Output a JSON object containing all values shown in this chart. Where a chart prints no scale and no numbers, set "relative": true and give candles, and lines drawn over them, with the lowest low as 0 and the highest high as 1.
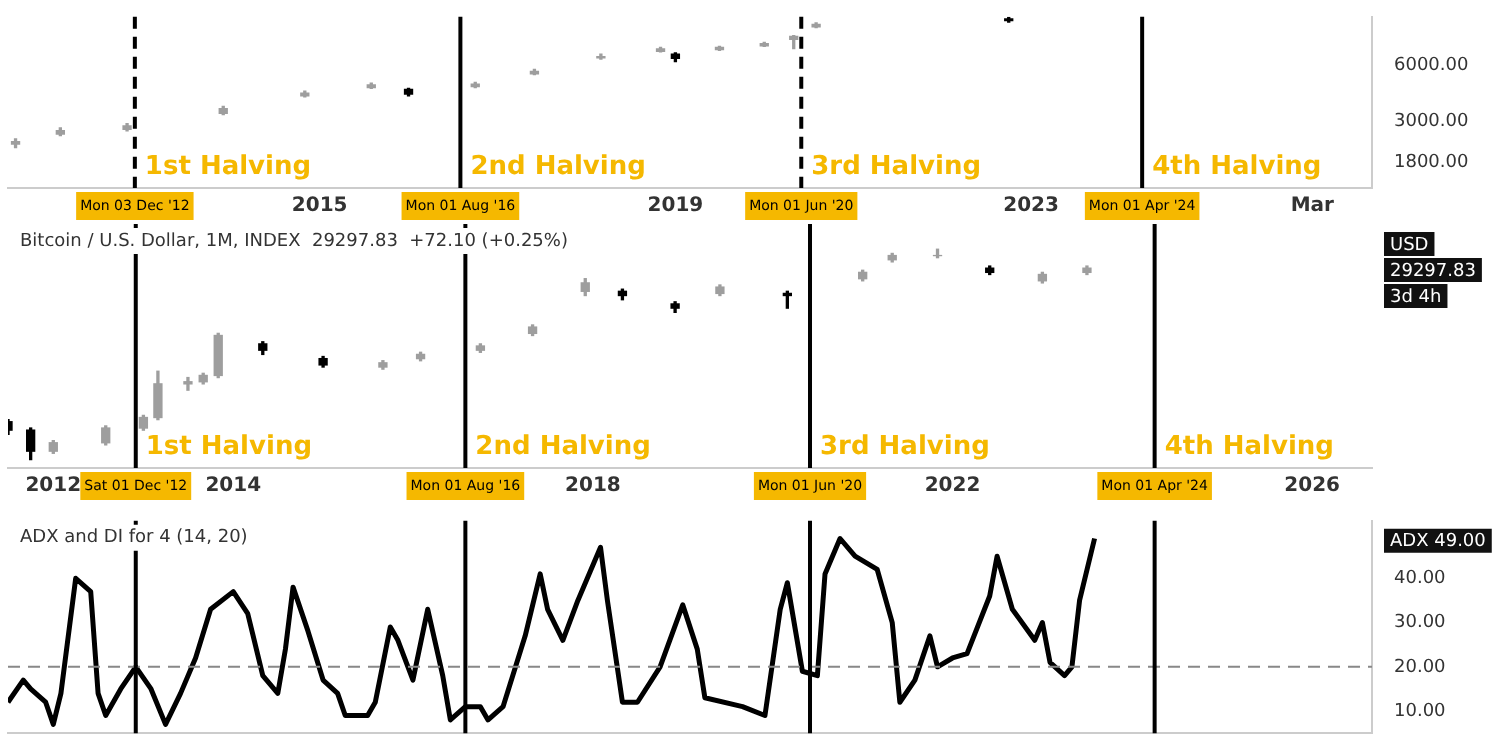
{
  "chart_data": [
    {
      "type": "candlestick",
      "log": true,
      "xlim": [
        "2011-07",
        "2026-11"
      ],
      "ylim": [
        1300,
        11000
      ],
      "xticks": [
        {
          "value": "2015-01",
          "label": "2015"
        },
        {
          "value": "2019-01",
          "label": "2019"
        },
        {
          "value": "2023-01",
          "label": "2023"
        },
        {
          "value": "2026-03",
          "label": "Mar"
        }
      ],
      "yticks": [
        {
          "value": 1800,
          "label": "1800.00"
        },
        {
          "value": 3000,
          "label": "3000.00"
        },
        {
          "value": 6000,
          "label": "6000.00"
        }
      ],
      "x": [
        "2011-08",
        "2012-02",
        "2012-11",
        "2013-12",
        "2014-11",
        "2015-08",
        "2016-01",
        "2016-10",
        "2017-06",
        "2018-03",
        "2018-11",
        "2019-01",
        "2019-07",
        "2020-01",
        "2020-05",
        "2020-08",
        "2022-10"
      ],
      "ohlc": [
        [
          2250,
          2400,
          2150,
          2320
        ],
        [
          2550,
          2750,
          2500,
          2660
        ],
        [
          2700,
          2900,
          2650,
          2820
        ],
        [
          3300,
          3600,
          3250,
          3500
        ],
        [
          4100,
          4350,
          4050,
          4240
        ],
        [
          4550,
          4800,
          4500,
          4700
        ],
        [
          4450,
          4500,
          4100,
          4200
        ],
        [
          4600,
          4850,
          4550,
          4750
        ],
        [
          5400,
          5700,
          5350,
          5560
        ],
        [
          6600,
          6900,
          6500,
          6700
        ],
        [
          7150,
          7500,
          7100,
          7380
        ],
        [
          6900,
          7000,
          6300,
          6560
        ],
        [
          7300,
          7600,
          7250,
          7500
        ],
        [
          7650,
          8000,
          7600,
          7860
        ],
        [
          8300,
          8700,
          7400,
          8600
        ],
        [
          9700,
          10200,
          9600,
          10000
        ],
        [
          10700,
          10900,
          10300,
          10500
        ]
      ],
      "ref_lines": [
        {
          "axis": "x",
          "value": "2012-12-03",
          "label": "Mon 03 Dec '12",
          "color": "#000000",
          "line_style": "dashed"
        },
        {
          "axis": "x",
          "value": "2016-08-01",
          "label": "Mon 01 Aug '16",
          "color": "#000000",
          "line_style": "solid"
        },
        {
          "axis": "x",
          "value": "2020-06-01",
          "label": "Mon 01 Jun '20",
          "color": "#000000",
          "line_style": "dashed"
        },
        {
          "axis": "x",
          "value": "2024-04-01",
          "label": "Mon 01 Apr '24",
          "color": "#000000",
          "line_style": "solid"
        }
      ],
      "annotations": [
        {
          "text": "1st Halving",
          "x": "2012-12-03"
        },
        {
          "text": "2nd Halving",
          "x": "2016-08-01"
        },
        {
          "text": "3rd Halving",
          "x": "2020-06-01"
        },
        {
          "text": "4th Halving",
          "x": "2024-04-01"
        }
      ]
    },
    {
      "type": "candlestick",
      "relative": true,
      "title": "Bitcoin / U.S. Dollar, 1M, INDEX  29297.83  +72.10 (+0.25%)",
      "xlim": [
        "2011-07",
        "2026-09"
      ],
      "xticks": [
        {
          "value": "2012-01",
          "label": "2012"
        },
        {
          "value": "2014-01",
          "label": "2014"
        },
        {
          "value": "2018-01",
          "label": "2018"
        },
        {
          "value": "2022-01",
          "label": "2022"
        },
        {
          "value": "2026-01",
          "label": "2026"
        }
      ],
      "x": [
        "2011-07",
        "2011-10",
        "2012-01",
        "2012-08",
        "2013-01",
        "2013-03",
        "2013-07",
        "2013-09",
        "2013-11",
        "2014-05",
        "2015-01",
        "2015-09",
        "2016-02",
        "2016-10",
        "2017-05",
        "2017-12",
        "2018-05",
        "2018-12",
        "2019-06",
        "2020-03",
        "2021-01",
        "2021-05",
        "2021-11",
        "2022-06",
        "2023-01",
        "2023-07"
      ],
      "ohlc": [
        [
          0.18,
          0.19,
          0.12,
          0.14
        ],
        [
          0.14,
          0.15,
          0,
          0.04
        ],
        [
          0.04,
          0.09,
          0.03,
          0.08
        ],
        [
          0.08,
          0.16,
          0.07,
          0.15
        ],
        [
          0.15,
          0.21,
          0.14,
          0.2
        ],
        [
          0.2,
          0.42,
          0.19,
          0.36
        ],
        [
          0.36,
          0.39,
          0.33,
          0.37
        ],
        [
          0.37,
          0.41,
          0.36,
          0.4
        ],
        [
          0.4,
          0.6,
          0.39,
          0.59
        ],
        [
          0.55,
          0.56,
          0.5,
          0.52
        ],
        [
          0.48,
          0.49,
          0.44,
          0.45
        ],
        [
          0.44,
          0.47,
          0.43,
          0.46
        ],
        [
          0.48,
          0.51,
          0.47,
          0.5
        ],
        [
          0.52,
          0.55,
          0.51,
          0.54
        ],
        [
          0.6,
          0.64,
          0.59,
          0.63
        ],
        [
          0.8,
          0.86,
          0.78,
          0.84
        ],
        [
          0.8,
          0.81,
          0.76,
          0.78
        ],
        [
          0.74,
          0.75,
          0.7,
          0.72
        ],
        [
          0.79,
          0.83,
          0.78,
          0.82
        ],
        [
          0.79,
          0.8,
          0.72,
          0.78
        ],
        [
          0.86,
          0.9,
          0.85,
          0.89
        ],
        [
          0.95,
          0.98,
          0.94,
          0.97
        ],
        [
          0.97,
          1,
          0.96,
          0.97
        ],
        [
          0.91,
          0.92,
          0.88,
          0.89
        ],
        [
          0.85,
          0.89,
          0.84,
          0.88
        ],
        [
          0.89,
          0.92,
          0.88,
          0.91
        ]
      ],
      "ref_lines": [
        {
          "axis": "x",
          "value": "2012-12-01",
          "label": "Sat 01 Dec '12",
          "color": "#000000",
          "line_style": "solid"
        },
        {
          "axis": "x",
          "value": "2016-08-01",
          "label": "Mon 01 Aug '16",
          "color": "#000000",
          "line_style": "solid"
        },
        {
          "axis": "x",
          "value": "2020-06-01",
          "label": "Mon 01 Jun '20",
          "color": "#000000",
          "line_style": "solid"
        },
        {
          "axis": "x",
          "value": "2024-04-01",
          "label": "Mon 01 Apr '24",
          "color": "#000000",
          "line_style": "solid"
        }
      ],
      "annotations": [
        "USD",
        "29297.83",
        "3d 4h",
        {
          "text": "1st Halving",
          "x": "2012-12-01"
        },
        {
          "text": "2nd Halving",
          "x": "2016-08-01"
        },
        {
          "text": "3rd Halving",
          "x": "2020-06-01"
        },
        {
          "text": "4th Halving",
          "x": "2024-04-01"
        }
      ]
    },
    {
      "type": "line",
      "title": "ADX and DI for 4 (14, 20)",
      "tick_labels": "y",
      "xlim": [
        "2011-07",
        "2026-09"
      ],
      "ylim": [
        5,
        53
      ],
      "yticks": [
        {
          "value": 10,
          "label": "10.00"
        },
        {
          "value": 20,
          "label": "20.00"
        },
        {
          "value": 30,
          "label": "30.00"
        },
        {
          "value": 40,
          "label": "40.00"
        }
      ],
      "x": [
        "2011-07",
        "2011-09",
        "2011-10",
        "2011-12",
        "2012-01",
        "2012-02",
        "2012-04",
        "2012-06",
        "2012-07",
        "2012-08",
        "2012-10",
        "2012-12",
        "2013-02",
        "2013-04",
        "2013-06",
        "2013-08",
        "2013-10",
        "2014-01",
        "2014-03",
        "2014-05",
        "2014-07",
        "2014-08",
        "2014-09",
        "2014-11",
        "2015-01",
        "2015-03",
        "2015-04",
        "2015-07",
        "2015-08",
        "2015-10",
        "2015-11",
        "2016-01",
        "2016-03",
        "2016-05",
        "2016-06",
        "2016-08",
        "2016-10",
        "2016-11",
        "2017-01",
        "2017-04",
        "2017-06",
        "2017-07",
        "2017-09",
        "2017-11",
        "2018-02",
        "2018-03",
        "2018-05",
        "2018-07",
        "2018-10",
        "2019-01",
        "2019-03",
        "2019-04",
        "2019-09",
        "2019-12",
        "2020-02",
        "2020-03",
        "2020-05",
        "2020-07",
        "2020-08",
        "2020-10",
        "2020-12",
        "2021-03",
        "2021-05",
        "2021-06",
        "2021-08",
        "2021-10",
        "2021-11",
        "2022-01",
        "2022-03",
        "2022-06",
        "2022-07",
        "2022-09",
        "2022-12",
        "2023-01",
        "2023-02",
        "2023-04",
        "2023-05",
        "2023-06",
        "2023-08"
      ],
      "series": [
        {
          "color": "#000000",
          "values": [
            12,
            17,
            15,
            12,
            7,
            14,
            40,
            37,
            14,
            9,
            15,
            20,
            15,
            7,
            14,
            22,
            33,
            37,
            32,
            18,
            14,
            24,
            38,
            28,
            17,
            14,
            9,
            9,
            12,
            29,
            26,
            17,
            33,
            18,
            8,
            11,
            11,
            8,
            11,
            27,
            41,
            33,
            26,
            35,
            47,
            35,
            12,
            12,
            20,
            34,
            24,
            13,
            11,
            9,
            33,
            39,
            19,
            18,
            41,
            49,
            45,
            42,
            30,
            12,
            17,
            27,
            20,
            22,
            23,
            36,
            45,
            33,
            26,
            30,
            21,
            18,
            20,
            35,
            49
          ]
        }
      ],
      "ref_lines": [
        {
          "axis": "y",
          "value": 20,
          "color": "#888888",
          "line_style": "dashed"
        },
        {
          "axis": "x",
          "value": "2012-12-01",
          "color": "#000000",
          "line_style": "solid"
        },
        {
          "axis": "x",
          "value": "2016-08-01",
          "color": "#000000",
          "line_style": "solid"
        },
        {
          "axis": "x",
          "value": "2020-06-01",
          "color": "#000000",
          "line_style": "solid"
        },
        {
          "axis": "x",
          "value": "2024-04-01",
          "color": "#000000",
          "line_style": "solid"
        }
      ],
      "annotations": [
        "ADX 49.00"
      ]
    }
  ]
}
